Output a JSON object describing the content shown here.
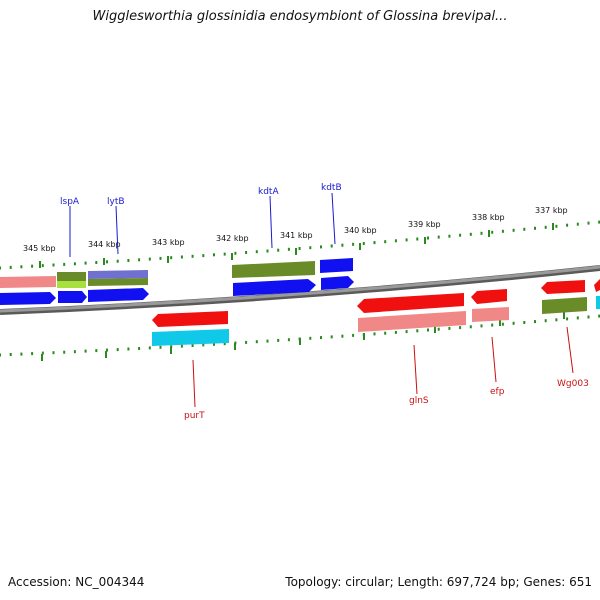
{
  "title": "Wigglesworthia glossinidia endosymbiont of Glossina brevipal...",
  "accession_label": "Accession: NC_004344",
  "summary_label": "Topology: circular; Length: 697,724 bp; Genes: 651",
  "colors": {
    "backbone": "#8a8a8a",
    "tick": "#2a8a1e",
    "forward_label": "#1a1ad0",
    "reverse_label": "#cc1010",
    "forward_gene": "#1010f0",
    "reverse_gene": "#f01010",
    "rna_like": "#6a8c28",
    "pink": "#f08888",
    "cyan": "#10c8e8",
    "light_green": "#a8e040",
    "purple": "#7070d0"
  },
  "ticks": [
    "345 kbp",
    "344 kbp",
    "343 kbp",
    "342 kbp",
    "341 kbp",
    "340 kbp",
    "339 kbp",
    "338 kbp",
    "337 kbp"
  ],
  "forward_gene_labels": [
    "lspA",
    "lytB",
    "kdtA",
    "kdtB"
  ],
  "reverse_gene_labels": [
    "purT",
    "glnS",
    "efp",
    "Wg003"
  ]
}
